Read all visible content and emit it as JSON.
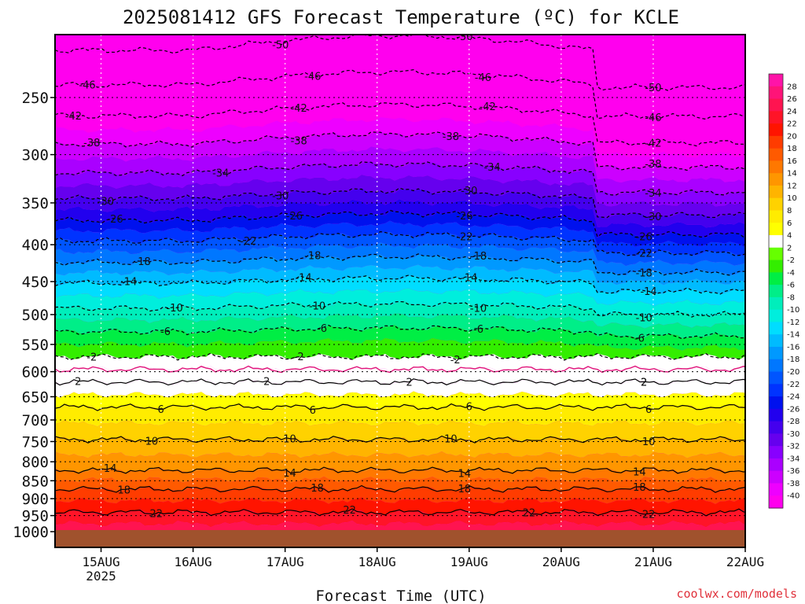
{
  "title": "2025081412 GFS Forecast Temperature (ºC) for KCLE",
  "credit": "coolwx.com/models",
  "chart_data": {
    "type": "heatmap",
    "title": "2025081412 GFS Forecast Temperature (ºC) for KCLE",
    "xlabel": "Forecast Time (UTC)",
    "ylabel": "",
    "x_ticks": [
      {
        "label": "15AUG",
        "sub": "2025",
        "day": 15
      },
      {
        "label": "16AUG",
        "sub": "",
        "day": 16
      },
      {
        "label": "17AUG",
        "sub": "",
        "day": 17
      },
      {
        "label": "18AUG",
        "sub": "",
        "day": 18
      },
      {
        "label": "19AUG",
        "sub": "",
        "day": 19
      },
      {
        "label": "20AUG",
        "sub": "",
        "day": 20
      },
      {
        "label": "21AUG",
        "sub": "",
        "day": 21
      },
      {
        "label": "22AUG",
        "sub": "",
        "day": 22
      }
    ],
    "xlim_days": [
      14.5,
      22.0
    ],
    "y_axis": "pressure (hPa), log scale, inverted",
    "y_ticks": [
      250,
      300,
      350,
      400,
      450,
      500,
      550,
      600,
      650,
      700,
      750,
      800,
      850,
      900,
      950,
      1000
    ],
    "ylim": [
      1050,
      200
    ],
    "grid": true,
    "ground_color": "#a0522d",
    "zero_contour_color": "#e0147a",
    "colorbar": {
      "labels": [
        28,
        26,
        24,
        22,
        20,
        18,
        16,
        14,
        12,
        10,
        8,
        6,
        4,
        2,
        -2,
        -4,
        -6,
        -8,
        -10,
        -12,
        -14,
        -16,
        -18,
        -20,
        -22,
        -24,
        -26,
        -28,
        -30,
        -32,
        -34,
        -36,
        -38,
        -40
      ],
      "colors": [
        "#ff14a8",
        "#ff1478",
        "#ff1450",
        "#ff1428",
        "#ff1400",
        "#ff3c00",
        "#ff5a00",
        "#ff7800",
        "#ff9600",
        "#ffb400",
        "#ffd200",
        "#ffec00",
        "#ffff00",
        "#ffffff",
        "#66ff00",
        "#33ee00",
        "#00ee44",
        "#00ee88",
        "#00eebb",
        "#00eedd",
        "#00ddff",
        "#00bbff",
        "#0099ff",
        "#0077ff",
        "#0055ff",
        "#0033ff",
        "#0011ee",
        "#2200ee",
        "#4400ee",
        "#6600ee",
        "#8800ff",
        "#aa00ff",
        "#cc00ff",
        "#ee00ff",
        "#ff00ee"
      ]
    },
    "contours": [
      {
        "value": -50,
        "pressure": 215
      },
      {
        "value": -46,
        "pressure": 240
      },
      {
        "value": -42,
        "pressure": 265
      },
      {
        "value": -38,
        "pressure": 290
      },
      {
        "value": -34,
        "pressure": 318
      },
      {
        "value": -30,
        "pressure": 345
      },
      {
        "value": -26,
        "pressure": 370
      },
      {
        "value": -22,
        "pressure": 395
      },
      {
        "value": -18,
        "pressure": 423
      },
      {
        "value": -14,
        "pressure": 452
      },
      {
        "value": -10,
        "pressure": 490
      },
      {
        "value": -6,
        "pressure": 528
      },
      {
        "value": -2,
        "pressure": 572
      },
      {
        "value": 2,
        "pressure": 620
      },
      {
        "value": 6,
        "pressure": 672
      },
      {
        "value": 10,
        "pressure": 745
      },
      {
        "value": 14,
        "pressure": 822
      },
      {
        "value": 18,
        "pressure": 873
      },
      {
        "value": 22,
        "pressure": 940
      }
    ],
    "contour_labels": [
      {
        "text": "-50",
        "day": 16.95
      },
      {
        "text": "-50",
        "day": 18.95
      },
      {
        "text": "-50",
        "day": 21.0
      },
      {
        "text": "-46",
        "day": 14.85
      },
      {
        "text": "-46",
        "day": 17.3
      },
      {
        "text": "-46",
        "day": 19.15
      },
      {
        "text": "-46",
        "day": 21.0
      },
      {
        "text": "-42",
        "day": 14.7
      },
      {
        "text": "-42",
        "day": 17.15
      },
      {
        "text": "-42",
        "day": 19.2
      },
      {
        "text": "-42",
        "day": 21.0
      },
      {
        "text": "-38",
        "day": 14.9
      },
      {
        "text": "-38",
        "day": 17.15
      },
      {
        "text": "-38",
        "day": 18.8
      },
      {
        "text": "-38",
        "day": 21.0
      },
      {
        "text": "-34",
        "day": 16.3
      },
      {
        "text": "-34",
        "day": 19.25
      },
      {
        "text": "-34",
        "day": 21.0
      },
      {
        "text": "-30",
        "day": 15.05
      },
      {
        "text": "-30",
        "day": 16.95
      },
      {
        "text": "-30",
        "day": 19.0
      },
      {
        "text": "-30",
        "day": 21.0
      },
      {
        "text": "-26",
        "day": 15.15
      },
      {
        "text": "-26",
        "day": 17.1
      },
      {
        "text": "-26",
        "day": 18.95
      },
      {
        "text": "-26",
        "day": 20.9
      },
      {
        "text": "-22",
        "day": 16.6
      },
      {
        "text": "-22",
        "day": 18.95
      },
      {
        "text": "-22",
        "day": 20.9
      },
      {
        "text": "-18",
        "day": 15.45
      },
      {
        "text": "-18",
        "day": 17.3
      },
      {
        "text": "-18",
        "day": 19.1
      },
      {
        "text": "-18",
        "day": 20.9
      },
      {
        "text": "-14",
        "day": 15.3
      },
      {
        "text": "-14",
        "day": 17.2
      },
      {
        "text": "-14",
        "day": 19.0
      },
      {
        "text": "-14",
        "day": 20.95
      },
      {
        "text": "-10",
        "day": 15.8
      },
      {
        "text": "-10",
        "day": 17.35
      },
      {
        "text": "-10",
        "day": 19.1
      },
      {
        "text": "-10",
        "day": 20.9
      },
      {
        "text": "-6",
        "day": 15.7
      },
      {
        "text": "-6",
        "day": 17.4
      },
      {
        "text": "-6",
        "day": 19.1
      },
      {
        "text": "-6",
        "day": 20.85
      },
      {
        "text": "-2",
        "day": 14.9
      },
      {
        "text": "-2",
        "day": 17.15
      },
      {
        "text": "-2",
        "day": 18.85
      },
      {
        "text": "2",
        "day": 14.75
      },
      {
        "text": "2",
        "day": 16.8
      },
      {
        "text": "2",
        "day": 18.35
      },
      {
        "text": "2",
        "day": 20.9
      },
      {
        "text": "2",
        "day": 20.9
      },
      {
        "text": "6",
        "day": 15.65
      },
      {
        "text": "6",
        "day": 17.3
      },
      {
        "text": "6",
        "day": 19.0
      },
      {
        "text": "6",
        "day": 20.95
      },
      {
        "text": "10",
        "day": 15.55
      },
      {
        "text": "10",
        "day": 17.05
      },
      {
        "text": "10",
        "day": 18.8
      },
      {
        "text": "10",
        "day": 20.95
      },
      {
        "text": "14",
        "day": 15.1
      },
      {
        "text": "14",
        "day": 17.05
      },
      {
        "text": "14",
        "day": 18.95
      },
      {
        "text": "14",
        "day": 20.85
      },
      {
        "text": "18",
        "day": 15.25
      },
      {
        "text": "18",
        "day": 17.35
      },
      {
        "text": "18",
        "day": 18.95
      },
      {
        "text": "18",
        "day": 20.85
      },
      {
        "text": "22",
        "day": 15.6
      },
      {
        "text": "22",
        "day": 17.7
      },
      {
        "text": "22",
        "day": 19.65
      },
      {
        "text": "22",
        "day": 20.95
      }
    ]
  }
}
